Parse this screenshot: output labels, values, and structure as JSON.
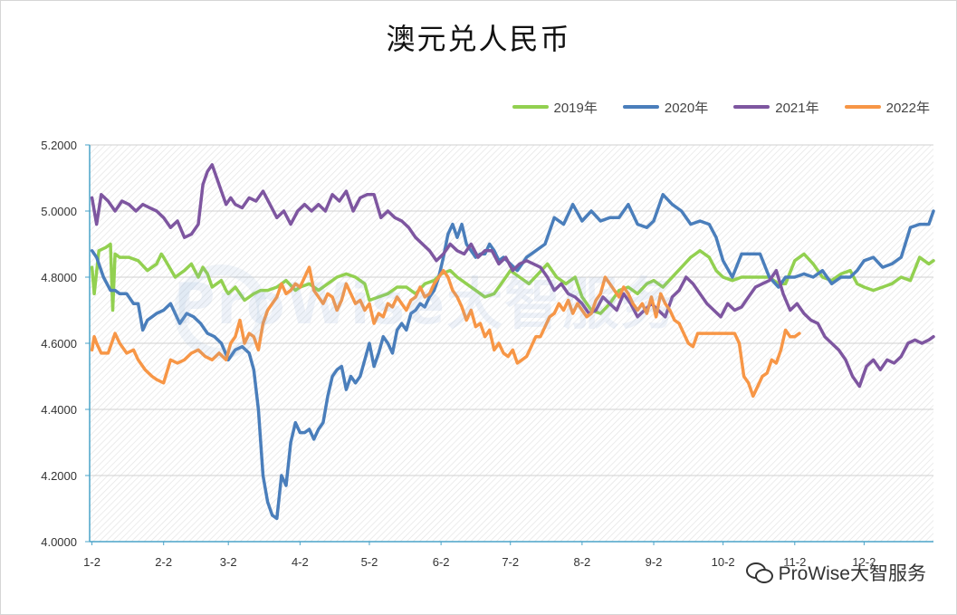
{
  "chart_data": {
    "type": "line",
    "title": "澳元兑人民币",
    "xlabel": "",
    "ylabel": "",
    "ylim": [
      4.0,
      5.2
    ],
    "yticks": [
      "4.0000",
      "4.2000",
      "4.4000",
      "4.6000",
      "4.8000",
      "5.0000",
      "5.2000"
    ],
    "xlim": [
      1,
      366
    ],
    "x_tick_labels": [
      "1-2",
      "2-2",
      "3-2",
      "4-2",
      "5-2",
      "6-2",
      "7-2",
      "8-2",
      "9-2",
      "10-2",
      "11-2",
      "12-2"
    ],
    "x_tick_days": [
      2,
      33,
      61,
      92,
      122,
      153,
      183,
      214,
      245,
      275,
      306,
      336
    ],
    "grid": true,
    "legend_position": "top-right",
    "series": [
      {
        "name": "2019年",
        "color": "#92d050",
        "x": [
          2,
          3,
          5,
          8,
          10,
          11,
          12,
          14,
          18,
          22,
          26,
          30,
          32,
          33,
          38,
          42,
          45,
          48,
          50,
          52,
          54,
          56,
          58,
          60,
          61,
          64,
          66,
          68,
          70,
          72,
          75,
          78,
          82,
          86,
          90,
          92,
          96,
          100,
          104,
          108,
          112,
          116,
          118,
          120,
          122,
          126,
          130,
          134,
          138,
          142,
          146,
          150,
          153,
          157,
          160,
          164,
          168,
          172,
          176,
          180,
          183,
          187,
          191,
          195,
          199,
          203,
          207,
          211,
          214,
          218,
          222,
          226,
          230,
          234,
          238,
          242,
          245,
          249,
          253,
          257,
          261,
          265,
          269,
          272,
          275,
          279,
          283,
          287,
          291,
          295,
          299,
          302,
          306,
          310,
          314,
          318,
          322,
          326,
          330,
          333,
          336,
          340,
          344,
          348,
          352,
          356,
          360,
          364,
          366
        ],
        "y": [
          4.83,
          4.75,
          4.88,
          4.89,
          4.9,
          4.7,
          4.87,
          4.86,
          4.86,
          4.85,
          4.82,
          4.84,
          4.87,
          4.86,
          4.8,
          4.82,
          4.84,
          4.8,
          4.83,
          4.81,
          4.77,
          4.78,
          4.79,
          4.76,
          4.75,
          4.77,
          4.75,
          4.73,
          4.74,
          4.75,
          4.76,
          4.76,
          4.77,
          4.79,
          4.76,
          4.77,
          4.78,
          4.76,
          4.78,
          4.8,
          4.81,
          4.8,
          4.79,
          4.78,
          4.73,
          4.74,
          4.75,
          4.77,
          4.77,
          4.75,
          4.78,
          4.79,
          4.81,
          4.82,
          4.8,
          4.78,
          4.76,
          4.74,
          4.75,
          4.79,
          4.82,
          4.8,
          4.78,
          4.81,
          4.84,
          4.8,
          4.78,
          4.8,
          4.74,
          4.7,
          4.69,
          4.72,
          4.76,
          4.77,
          4.75,
          4.78,
          4.79,
          4.77,
          4.8,
          4.83,
          4.86,
          4.88,
          4.86,
          4.82,
          4.8,
          4.79,
          4.8,
          4.8,
          4.8,
          4.8,
          4.78,
          4.78,
          4.85,
          4.87,
          4.84,
          4.8,
          4.79,
          4.81,
          4.82,
          4.78,
          4.77,
          4.76,
          4.77,
          4.78,
          4.8,
          4.79,
          4.86,
          4.84,
          4.85
        ]
      },
      {
        "name": "2020年",
        "color": "#4a7ebb",
        "x": [
          2,
          4,
          7,
          10,
          12,
          14,
          17,
          20,
          22,
          24,
          26,
          28,
          30,
          33,
          36,
          40,
          43,
          46,
          49,
          52,
          55,
          58,
          61,
          64,
          67,
          70,
          72,
          74,
          76,
          78,
          80,
          82,
          84,
          86,
          88,
          90,
          92,
          94,
          96,
          98,
          100,
          102,
          104,
          106,
          108,
          110,
          112,
          114,
          116,
          118,
          120,
          122,
          124,
          126,
          128,
          130,
          132,
          134,
          136,
          138,
          140,
          142,
          144,
          146,
          148,
          150,
          152,
          154,
          156,
          158,
          160,
          162,
          164,
          166,
          168,
          170,
          172,
          174,
          176,
          178,
          180,
          183,
          186,
          190,
          194,
          198,
          202,
          206,
          210,
          214,
          218,
          222,
          226,
          230,
          234,
          238,
          242,
          245,
          249,
          253,
          257,
          261,
          265,
          269,
          272,
          275,
          279,
          283,
          287,
          291,
          295,
          299,
          302,
          306,
          310,
          314,
          318,
          322,
          326,
          330,
          333,
          336,
          340,
          344,
          348,
          352,
          356,
          360,
          364,
          366
        ],
        "y": [
          4.88,
          4.86,
          4.8,
          4.76,
          4.76,
          4.75,
          4.75,
          4.72,
          4.72,
          4.64,
          4.67,
          4.68,
          4.69,
          4.7,
          4.72,
          4.66,
          4.69,
          4.68,
          4.66,
          4.63,
          4.62,
          4.6,
          4.55,
          4.58,
          4.59,
          4.57,
          4.52,
          4.4,
          4.2,
          4.12,
          4.08,
          4.07,
          4.2,
          4.17,
          4.3,
          4.36,
          4.33,
          4.33,
          4.34,
          4.31,
          4.34,
          4.36,
          4.44,
          4.5,
          4.52,
          4.53,
          4.46,
          4.5,
          4.48,
          4.5,
          4.55,
          4.6,
          4.53,
          4.57,
          4.62,
          4.6,
          4.57,
          4.64,
          4.66,
          4.64,
          4.69,
          4.7,
          4.72,
          4.71,
          4.74,
          4.76,
          4.8,
          4.86,
          4.93,
          4.96,
          4.92,
          4.96,
          4.9,
          4.88,
          4.86,
          4.87,
          4.87,
          4.9,
          4.88,
          4.85,
          4.86,
          4.84,
          4.82,
          4.86,
          4.88,
          4.9,
          4.98,
          4.96,
          5.02,
          4.97,
          5.0,
          4.97,
          4.98,
          4.98,
          5.02,
          4.96,
          4.95,
          4.97,
          5.05,
          5.02,
          5.0,
          4.96,
          4.97,
          4.96,
          4.92,
          4.85,
          4.8,
          4.87,
          4.87,
          4.87,
          4.8,
          4.77,
          4.8,
          4.8,
          4.81,
          4.8,
          4.82,
          4.78,
          4.8,
          4.8,
          4.82,
          4.85,
          4.86,
          4.83,
          4.84,
          4.86,
          4.95,
          4.96,
          4.96,
          5.0
        ]
      },
      {
        "name": "2021年",
        "color": "#7e56a0",
        "x": [
          2,
          4,
          6,
          9,
          12,
          15,
          18,
          21,
          24,
          27,
          30,
          33,
          36,
          39,
          42,
          45,
          48,
          50,
          52,
          54,
          56,
          58,
          60,
          62,
          64,
          67,
          70,
          73,
          76,
          79,
          82,
          85,
          88,
          91,
          94,
          97,
          100,
          103,
          106,
          109,
          112,
          115,
          118,
          121,
          124,
          127,
          130,
          133,
          136,
          139,
          142,
          145,
          148,
          151,
          154,
          157,
          160,
          163,
          166,
          169,
          172,
          175,
          178,
          181,
          184,
          187,
          190,
          193,
          196,
          199,
          202,
          205,
          208,
          211,
          214,
          217,
          220,
          223,
          226,
          229,
          232,
          235,
          238,
          241,
          244,
          247,
          250,
          253,
          256,
          259,
          262,
          265,
          268,
          271,
          274,
          277,
          280,
          283,
          286,
          289,
          292,
          295,
          298,
          301,
          304,
          307,
          310,
          313,
          316,
          319,
          322,
          325,
          328,
          331,
          334,
          337,
          340,
          343,
          346,
          349,
          352,
          355,
          358,
          361,
          364,
          366
        ],
        "y": [
          5.04,
          4.96,
          5.05,
          5.03,
          5.0,
          5.03,
          5.02,
          5.0,
          5.02,
          5.01,
          5.0,
          4.98,
          4.95,
          4.97,
          4.92,
          4.93,
          4.96,
          5.08,
          5.12,
          5.14,
          5.1,
          5.06,
          5.02,
          5.04,
          5.02,
          5.01,
          5.04,
          5.03,
          5.06,
          5.02,
          4.98,
          5.0,
          4.96,
          5.0,
          5.02,
          5.0,
          5.02,
          5.0,
          5.05,
          5.03,
          5.06,
          5.0,
          5.04,
          5.05,
          5.05,
          4.98,
          5.0,
          4.98,
          4.97,
          4.95,
          4.92,
          4.9,
          4.88,
          4.85,
          4.87,
          4.9,
          4.88,
          4.87,
          4.9,
          4.86,
          4.88,
          4.88,
          4.84,
          4.86,
          4.82,
          4.84,
          4.85,
          4.84,
          4.83,
          4.8,
          4.76,
          4.78,
          4.75,
          4.74,
          4.72,
          4.69,
          4.7,
          4.74,
          4.72,
          4.7,
          4.75,
          4.72,
          4.68,
          4.7,
          4.72,
          4.7,
          4.68,
          4.74,
          4.76,
          4.8,
          4.78,
          4.75,
          4.72,
          4.7,
          4.68,
          4.72,
          4.7,
          4.71,
          4.74,
          4.77,
          4.78,
          4.79,
          4.82,
          4.75,
          4.7,
          4.72,
          4.69,
          4.67,
          4.66,
          4.62,
          4.6,
          4.58,
          4.55,
          4.5,
          4.47,
          4.53,
          4.55,
          4.52,
          4.55,
          4.54,
          4.56,
          4.6,
          4.61,
          4.6,
          4.61,
          4.62
        ]
      },
      {
        "name": "2022年",
        "color": "#f79646",
        "x": [
          2,
          3,
          4,
          6,
          9,
          12,
          14,
          17,
          20,
          22,
          25,
          28,
          30,
          33,
          36,
          39,
          42,
          45,
          48,
          51,
          54,
          57,
          60,
          62,
          64,
          66,
          68,
          70,
          72,
          74,
          76,
          78,
          80,
          82,
          84,
          86,
          88,
          90,
          92,
          94,
          96,
          98,
          100,
          102,
          104,
          106,
          108,
          110,
          112,
          114,
          116,
          118,
          120,
          122,
          124,
          126,
          128,
          130,
          132,
          134,
          136,
          138,
          140,
          142,
          144,
          146,
          148,
          150,
          152,
          154,
          156,
          158,
          160,
          162,
          164,
          166,
          168,
          170,
          172,
          174,
          176,
          178,
          180,
          182,
          184,
          186,
          188,
          190,
          192,
          194,
          196,
          198,
          200,
          202,
          204,
          206,
          208,
          210,
          212,
          214,
          216,
          218,
          220,
          222,
          224,
          226,
          228,
          230,
          232,
          234,
          236,
          238,
          240,
          242,
          244,
          246,
          248,
          250,
          252,
          254,
          256,
          258,
          260,
          262,
          264,
          266,
          268,
          270,
          272,
          274,
          276,
          278,
          280,
          282,
          284,
          286,
          288,
          290,
          292,
          294,
          296,
          298,
          300,
          302,
          304,
          306,
          308
        ],
        "y": [
          4.58,
          4.62,
          4.6,
          4.57,
          4.57,
          4.63,
          4.6,
          4.57,
          4.58,
          4.55,
          4.52,
          4.5,
          4.49,
          4.48,
          4.55,
          4.54,
          4.55,
          4.57,
          4.58,
          4.56,
          4.55,
          4.57,
          4.55,
          4.6,
          4.62,
          4.67,
          4.6,
          4.63,
          4.62,
          4.58,
          4.66,
          4.7,
          4.72,
          4.74,
          4.78,
          4.75,
          4.76,
          4.78,
          4.77,
          4.8,
          4.83,
          4.76,
          4.74,
          4.72,
          4.75,
          4.74,
          4.7,
          4.73,
          4.78,
          4.75,
          4.72,
          4.73,
          4.7,
          4.72,
          4.66,
          4.69,
          4.68,
          4.72,
          4.71,
          4.74,
          4.72,
          4.7,
          4.73,
          4.74,
          4.77,
          4.74,
          4.75,
          4.78,
          4.8,
          4.82,
          4.8,
          4.76,
          4.74,
          4.71,
          4.67,
          4.7,
          4.65,
          4.66,
          4.62,
          4.64,
          4.58,
          4.6,
          4.57,
          4.56,
          4.58,
          4.54,
          4.55,
          4.56,
          4.59,
          4.62,
          4.62,
          4.65,
          4.68,
          4.69,
          4.72,
          4.7,
          4.73,
          4.69,
          4.72,
          4.7,
          4.68,
          4.69,
          4.73,
          4.75,
          4.8,
          4.78,
          4.76,
          4.74,
          4.77,
          4.75,
          4.72,
          4.7,
          4.72,
          4.69,
          4.74,
          4.68,
          4.75,
          4.72,
          4.7,
          4.67,
          4.66,
          4.63,
          4.6,
          4.59,
          4.63,
          4.63,
          4.63,
          4.63,
          4.63,
          4.63,
          4.63,
          4.63,
          4.63,
          4.6,
          4.5,
          4.48,
          4.44,
          4.47,
          4.5,
          4.51,
          4.55,
          4.54,
          4.58,
          4.64,
          4.62,
          4.62,
          4.63
        ]
      }
    ]
  },
  "watermark": {
    "plot_text": "ProWise大智服务",
    "footer_text": "ProWise大智服务",
    "footer_icon": "wechat-icon"
  }
}
